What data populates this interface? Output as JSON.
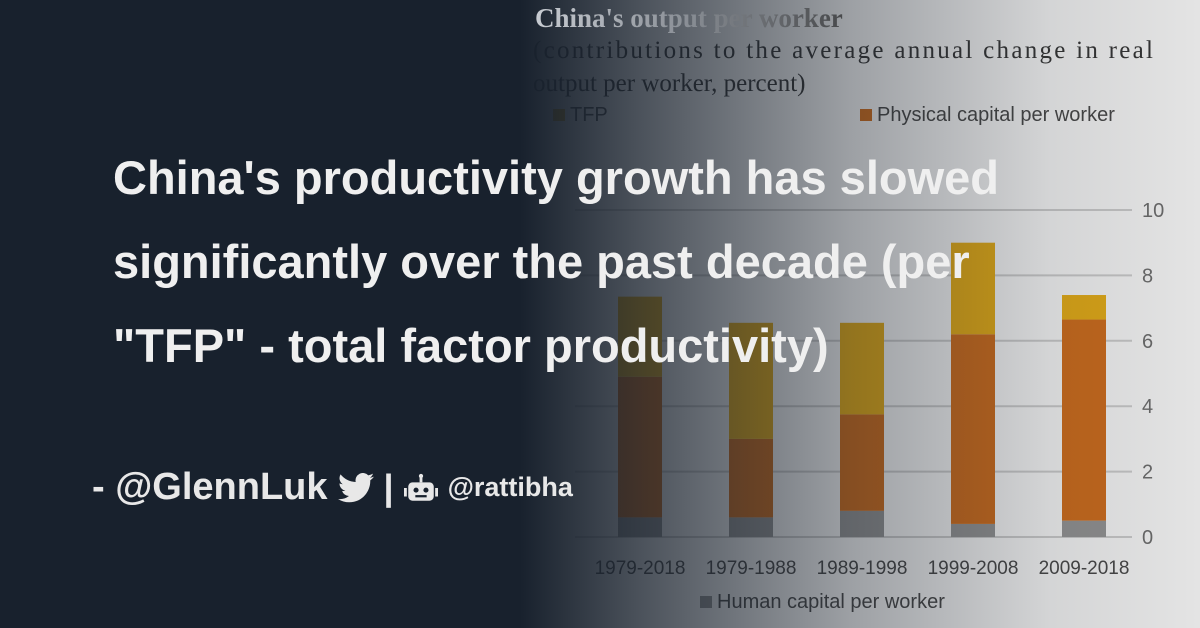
{
  "post": {
    "title": "China's productivity growth has slowed significantly over the past decade (per \"TFP\" - total factor productivity)",
    "author_prefix": "- @GlennLuk",
    "separator": "|",
    "site": "@rattibha",
    "icons": [
      "twitter-bird-icon",
      "robot-icon"
    ]
  },
  "chart_data": {
    "type": "bar",
    "stacked": true,
    "title": "China's output per worker",
    "subtitle": "(contributions to the average annual change in real output per worker, percent)",
    "categories": [
      "1979-2018",
      "1979-1988",
      "1989-1998",
      "1999-2008",
      "2009-2018"
    ],
    "series": [
      {
        "name": "Human capital per worker",
        "color": "#8a8a8a",
        "values": [
          0.6,
          0.6,
          0.8,
          0.4,
          0.5
        ]
      },
      {
        "name": "Physical capital per worker",
        "color": "#c0661c",
        "values": [
          4.3,
          2.4,
          2.95,
          5.8,
          6.15
        ]
      },
      {
        "name": "TFP",
        "color": "#d4a017",
        "values": [
          2.45,
          3.55,
          2.8,
          2.8,
          0.75
        ]
      }
    ],
    "yticks": [
      0,
      2,
      4,
      6,
      8,
      10
    ],
    "ylim": [
      0,
      10
    ],
    "grid": true,
    "legend": "top"
  }
}
